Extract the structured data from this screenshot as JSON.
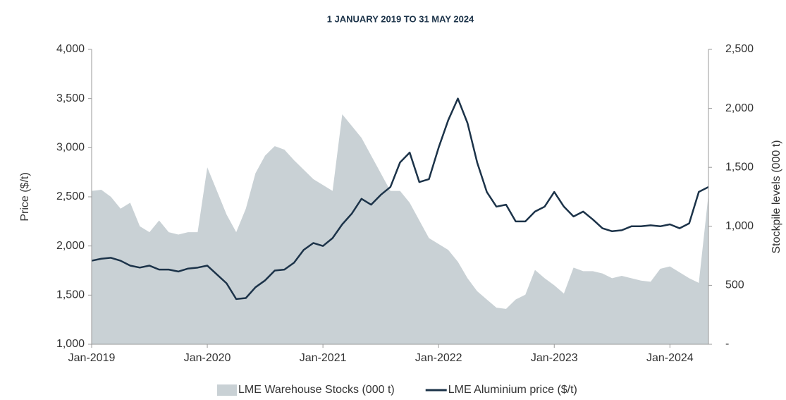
{
  "chart_data": {
    "type": "line",
    "title": "1 JANUARY 2019 TO 31 MAY 2024",
    "y_label": "Price ($/t)",
    "y2_label": "Stockpile levels (000 t)",
    "x": [
      "2019-01",
      "2019-02",
      "2019-03",
      "2019-04",
      "2019-05",
      "2019-06",
      "2019-07",
      "2019-08",
      "2019-09",
      "2019-10",
      "2019-11",
      "2019-12",
      "2020-01",
      "2020-02",
      "2020-03",
      "2020-04",
      "2020-05",
      "2020-06",
      "2020-07",
      "2020-08",
      "2020-09",
      "2020-10",
      "2020-11",
      "2020-12",
      "2021-01",
      "2021-02",
      "2021-03",
      "2021-04",
      "2021-05",
      "2021-06",
      "2021-07",
      "2021-08",
      "2021-09",
      "2021-10",
      "2021-11",
      "2021-12",
      "2022-01",
      "2022-02",
      "2022-03",
      "2022-04",
      "2022-05",
      "2022-06",
      "2022-07",
      "2022-08",
      "2022-09",
      "2022-10",
      "2022-11",
      "2022-12",
      "2023-01",
      "2023-02",
      "2023-03",
      "2023-04",
      "2023-05",
      "2023-06",
      "2023-07",
      "2023-08",
      "2023-09",
      "2023-10",
      "2023-11",
      "2023-12",
      "2024-01",
      "2024-02",
      "2024-03",
      "2024-04",
      "2024-05"
    ],
    "series": [
      {
        "name": "LME Warehouse Stocks (000 t)",
        "color": "#c9d1d5",
        "kind": "area",
        "axis": "y2",
        "values": [
          1300,
          1310,
          1250,
          1150,
          1200,
          1000,
          950,
          1050,
          950,
          930,
          950,
          950,
          1500,
          1300,
          1100,
          950,
          1150,
          1450,
          1600,
          1680,
          1650,
          1560,
          1480,
          1400,
          1350,
          1300,
          1950,
          1850,
          1750,
          1600,
          1450,
          1300,
          1300,
          1200,
          1050,
          900,
          850,
          800,
          700,
          560,
          450,
          380,
          310,
          300,
          380,
          420,
          630,
          560,
          500,
          430,
          650,
          620,
          620,
          600,
          560,
          580,
          560,
          540,
          530,
          640,
          660,
          610,
          560,
          520,
          1270
        ]
      },
      {
        "name": "LME Aluminium price ($/t)",
        "color": "#1c3349",
        "kind": "line",
        "values": [
          1850,
          1870,
          1880,
          1850,
          1800,
          1780,
          1800,
          1760,
          1760,
          1740,
          1770,
          1780,
          1800,
          1710,
          1620,
          1460,
          1470,
          1580,
          1650,
          1750,
          1760,
          1830,
          1960,
          2030,
          2000,
          2080,
          2220,
          2330,
          2480,
          2420,
          2520,
          2600,
          2850,
          2950,
          2650,
          2680,
          3000,
          3280,
          3500,
          3250,
          2850,
          2550,
          2400,
          2420,
          2250,
          2250,
          2350,
          2400,
          2550,
          2400,
          2300,
          2350,
          2270,
          2180,
          2150,
          2160,
          2200,
          2200,
          2210,
          2200,
          2220,
          2180,
          2230,
          2550,
          2600
        ]
      }
    ],
    "xlim": [
      "2019-01",
      "2024-05"
    ],
    "xticks": [
      {
        "value": "2019-01",
        "label": "Jan-2019"
      },
      {
        "value": "2020-01",
        "label": "Jan-2020"
      },
      {
        "value": "2021-01",
        "label": "Jan-2021"
      },
      {
        "value": "2022-01",
        "label": "Jan-2022"
      },
      {
        "value": "2023-01",
        "label": "Jan-2023"
      },
      {
        "value": "2024-01",
        "label": "Jan-2024"
      }
    ],
    "ylim": [
      1000,
      4000
    ],
    "yticks": [
      {
        "value": 1000,
        "label": "1,000"
      },
      {
        "value": 1500,
        "label": "1,500"
      },
      {
        "value": 2000,
        "label": "2,000"
      },
      {
        "value": 2500,
        "label": "2,500"
      },
      {
        "value": 3000,
        "label": "3,000"
      },
      {
        "value": 3500,
        "label": "3,500"
      },
      {
        "value": 4000,
        "label": "4,000"
      }
    ],
    "y2lim": [
      0,
      2500
    ],
    "y2ticks": [
      {
        "value": 0,
        "label": "-"
      },
      500,
      {
        "value": 1000,
        "label": "1,000"
      },
      {
        "value": 1500,
        "label": "1,500"
      },
      {
        "value": 2000,
        "label": "2,000"
      },
      {
        "value": 2500,
        "label": "2,500"
      }
    ],
    "legend": "bottom"
  }
}
